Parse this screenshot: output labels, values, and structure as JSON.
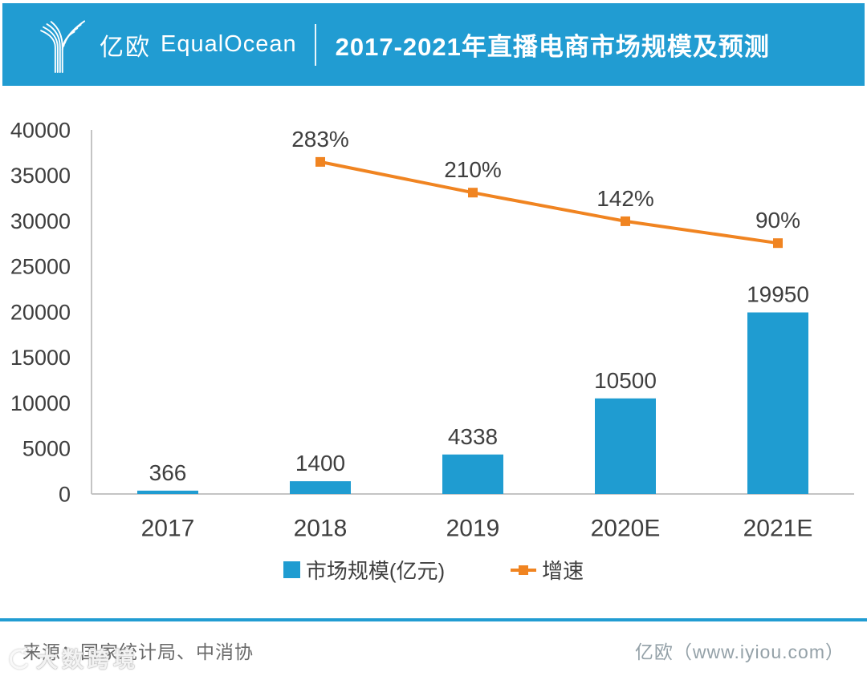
{
  "header": {
    "brand_cn": "亿欧",
    "brand_en": "EqualOcean",
    "title": "2017-2021年直播电商市场规模及预测"
  },
  "chart_data": {
    "type": "bar",
    "combo": "bar+line",
    "title": "2017-2021年直播电商市场规模及预测",
    "categories": [
      "2017",
      "2018",
      "2019",
      "2020E",
      "2021E"
    ],
    "series": [
      {
        "name": "市场规模(亿元)",
        "type": "bar",
        "axis": "primary",
        "color": "#1F9CD1",
        "values": [
          366,
          1400,
          4338,
          10500,
          19950
        ],
        "labels": [
          "366",
          "1400",
          "4338",
          "10500",
          "19950"
        ]
      },
      {
        "name": "增速",
        "type": "line",
        "axis": "secondary",
        "color": "#F08421",
        "values": [
          null,
          283,
          210,
          142,
          90
        ],
        "labels": [
          "",
          "283%",
          "210%",
          "142%",
          "90%"
        ],
        "unit": "%"
      }
    ],
    "primary_axis": {
      "min": 0,
      "max": 40000,
      "step": 5000,
      "tick_labels": [
        "0",
        "5000",
        "10000",
        "15000",
        "20000",
        "25000",
        "30000",
        "35000",
        "40000"
      ]
    },
    "grid": false,
    "legend_position": "bottom"
  },
  "legend": {
    "items": [
      {
        "label": "市场规模(亿元)",
        "color": "#1F9CD1",
        "marker": "square"
      },
      {
        "label": "增速",
        "color": "#F08421",
        "marker": "line"
      }
    ]
  },
  "footer": {
    "source": "来源：国家统计局、中消协",
    "credit": "亿欧（www.iyiou.com）"
  },
  "watermark": {
    "text": "大数跨境"
  },
  "colors": {
    "header_bg": "#219CD2",
    "bar": "#1F9CD1",
    "line": "#F08421",
    "axis": "#C4C4C4",
    "label_text": "#3F3F3F"
  }
}
